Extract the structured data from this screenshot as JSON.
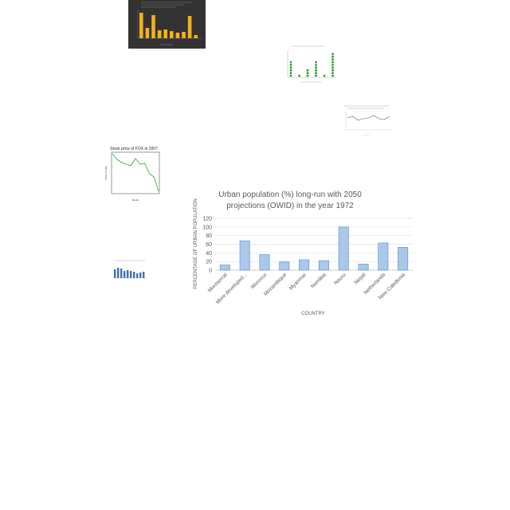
{
  "chart_data": [
    {
      "type": "bar",
      "title": "Urban population (%) long-run with 2050 projections (OWID) in the year 1972",
      "title_lines": [
        "Urban population (%) long-run with 2050",
        "projections (OWID) in the year 1972"
      ],
      "xlabel": "COUNTRY",
      "ylabel": "PERCENTAGE OF URBAN POPULATION",
      "categories": [
        "Montserrat",
        "More developed...",
        "Morocco",
        "Mozambique",
        "Myanmar",
        "Namibia",
        "Nauru",
        "Nepal",
        "Netherlands",
        "New Caledonia"
      ],
      "values": [
        12,
        68,
        36,
        19,
        24,
        22,
        100,
        14,
        63,
        53
      ],
      "ylim": [
        0,
        120
      ],
      "yticks": [
        0,
        20,
        40,
        60,
        80,
        100,
        120
      ],
      "grid": true,
      "bar_color": "#a9c8ea",
      "bar_edge": "#5b8fc7"
    },
    {
      "type": "line",
      "title": "Stock price of FOX in 2007",
      "xlabel": "Month",
      "ylabel": "Price in USD",
      "series_color": "#2ca02c"
    },
    {
      "type": "bar",
      "bar_color": "#f2b21b",
      "background": "#333333"
    },
    {
      "type": "scatter",
      "point_color": "#2ca02c"
    },
    {
      "type": "line",
      "series_color": "#666666"
    },
    {
      "type": "bar",
      "bar_color": "#3d6fb6"
    }
  ]
}
